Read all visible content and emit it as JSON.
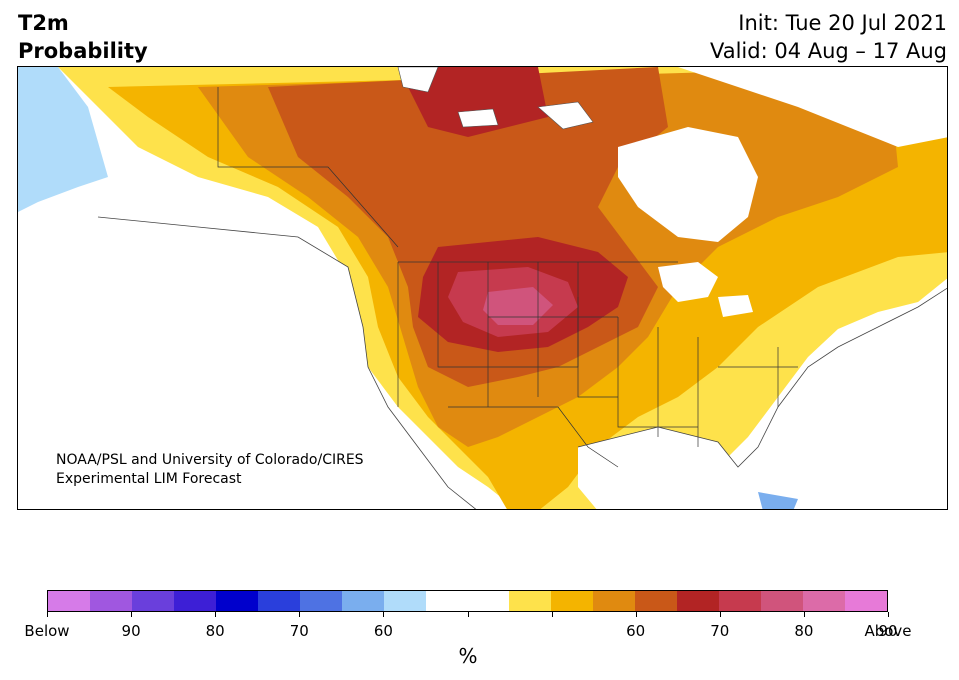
{
  "header": {
    "title_line1": "T2m",
    "title_line2": "Probability",
    "init_label": "Init: Tue 20 Jul 2021",
    "valid_label": "Valid: 04 Aug – 17 Aug"
  },
  "map": {
    "credit_line1": "NOAA/PSL and University of Colorado/CIRES",
    "credit_line2": "Experimental LIM Forecast",
    "region": "North America",
    "highest_probability_region": "Northern Rockies / Northern Plains"
  },
  "colorbar": {
    "units_label": "%",
    "colors": [
      "#d67be8",
      "#a057e0",
      "#6a3fdc",
      "#3d1fd6",
      "#0000cc",
      "#2a3fdc",
      "#4e72e3",
      "#7aaeee",
      "#b0dcfa",
      "#ffffff",
      "#ffffff",
      "#fee24b",
      "#f4b400",
      "#e08a10",
      "#c95818",
      "#b22424",
      "#c63a4e",
      "#d0547c",
      "#dc6ba8",
      "#e77ad8"
    ],
    "tick_labels": [
      "Below",
      "90",
      "80",
      "70",
      "60",
      "",
      "",
      "60",
      "70",
      "80",
      "90",
      "Above"
    ]
  }
}
